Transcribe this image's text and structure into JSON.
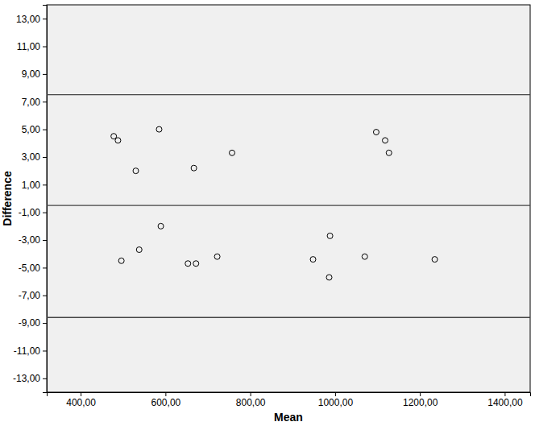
{
  "chart_data": {
    "type": "scatter",
    "x_label": "Mean",
    "y_label": "Difference",
    "x": [
      478,
      488,
      530,
      585,
      667,
      757,
      1097,
      1118,
      1127,
      496,
      538,
      589,
      653,
      672,
      722,
      948,
      988,
      986,
      1070,
      1235
    ],
    "values": [
      4.5,
      4.2,
      2.0,
      5.0,
      2.2,
      3.3,
      4.8,
      4.2,
      3.3,
      -4.5,
      -3.7,
      -2.0,
      -4.7,
      -4.7,
      -4.2,
      -4.4,
      -2.7,
      -5.7,
      -4.2,
      -4.4
    ],
    "reference_lines": [
      7.5,
      -0.5,
      -8.6
    ],
    "marker": "open-circle",
    "color": "#000000",
    "xlim": [
      320,
      1460
    ],
    "xticks": [
      {
        "value": 400,
        "label": "400,00"
      },
      {
        "value": 600,
        "label": "600,00"
      },
      {
        "value": 800,
        "label": "800,00"
      },
      {
        "value": 1000,
        "label": "1000,00"
      },
      {
        "value": 1200,
        "label": "1200,00"
      },
      {
        "value": 1400,
        "label": "1400,00"
      }
    ],
    "ylim": [
      -14,
      14
    ],
    "yticks": [
      {
        "value": 13,
        "label": "13,00"
      },
      {
        "value": 11,
        "label": "11,00"
      },
      {
        "value": 9,
        "label": "9,00"
      },
      {
        "value": 7,
        "label": "7,00"
      },
      {
        "value": 5,
        "label": "5,00"
      },
      {
        "value": 3,
        "label": "3,00"
      },
      {
        "value": 1,
        "label": "1,00"
      },
      {
        "value": -1,
        "label": "-1,00"
      },
      {
        "value": -3,
        "label": "-3,00"
      },
      {
        "value": -5,
        "label": "-5,00"
      },
      {
        "value": -7,
        "label": "-7,00"
      },
      {
        "value": -9,
        "label": "-9,00"
      },
      {
        "value": -11,
        "label": "-11,00"
      },
      {
        "value": -13,
        "label": "-13,00"
      }
    ],
    "grid": false
  }
}
